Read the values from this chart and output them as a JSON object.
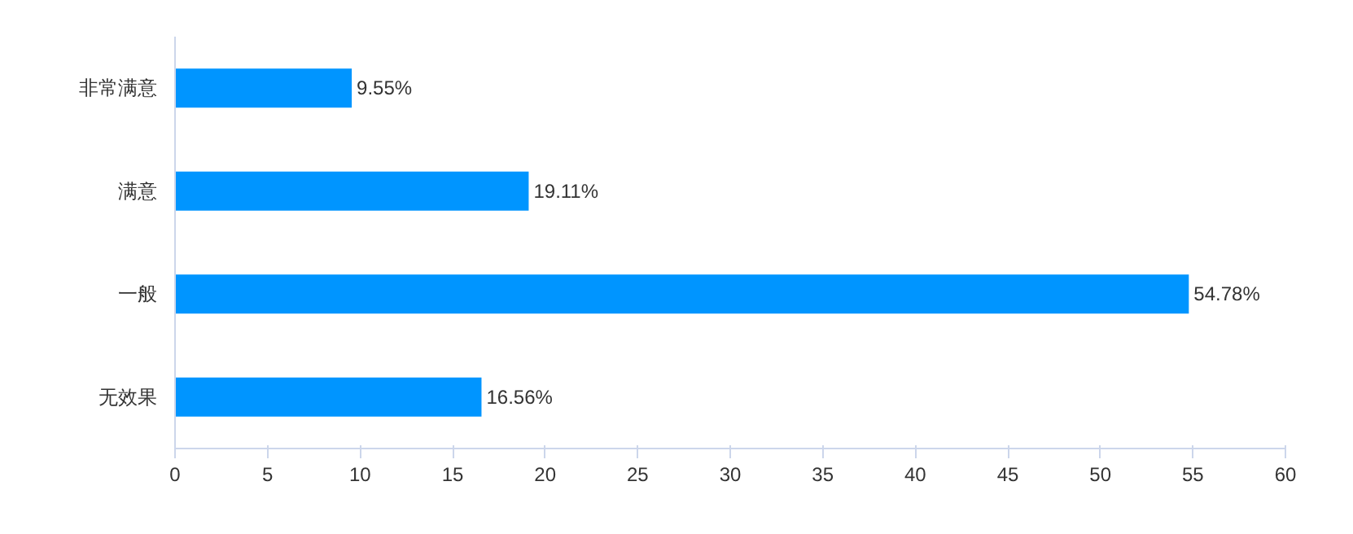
{
  "chart_data": {
    "type": "bar",
    "orientation": "horizontal",
    "categories": [
      "非常满意",
      "满意",
      "一般",
      "无效果"
    ],
    "values": [
      9.55,
      19.11,
      54.78,
      16.56
    ],
    "value_labels": [
      "9.55%",
      "19.11%",
      "54.78%",
      "16.56%"
    ],
    "color": "#0095ff",
    "xlim": [
      0,
      60
    ],
    "xticks": [
      0,
      5,
      10,
      15,
      20,
      25,
      30,
      35,
      40,
      45,
      50,
      55,
      60
    ],
    "grid": false
  }
}
